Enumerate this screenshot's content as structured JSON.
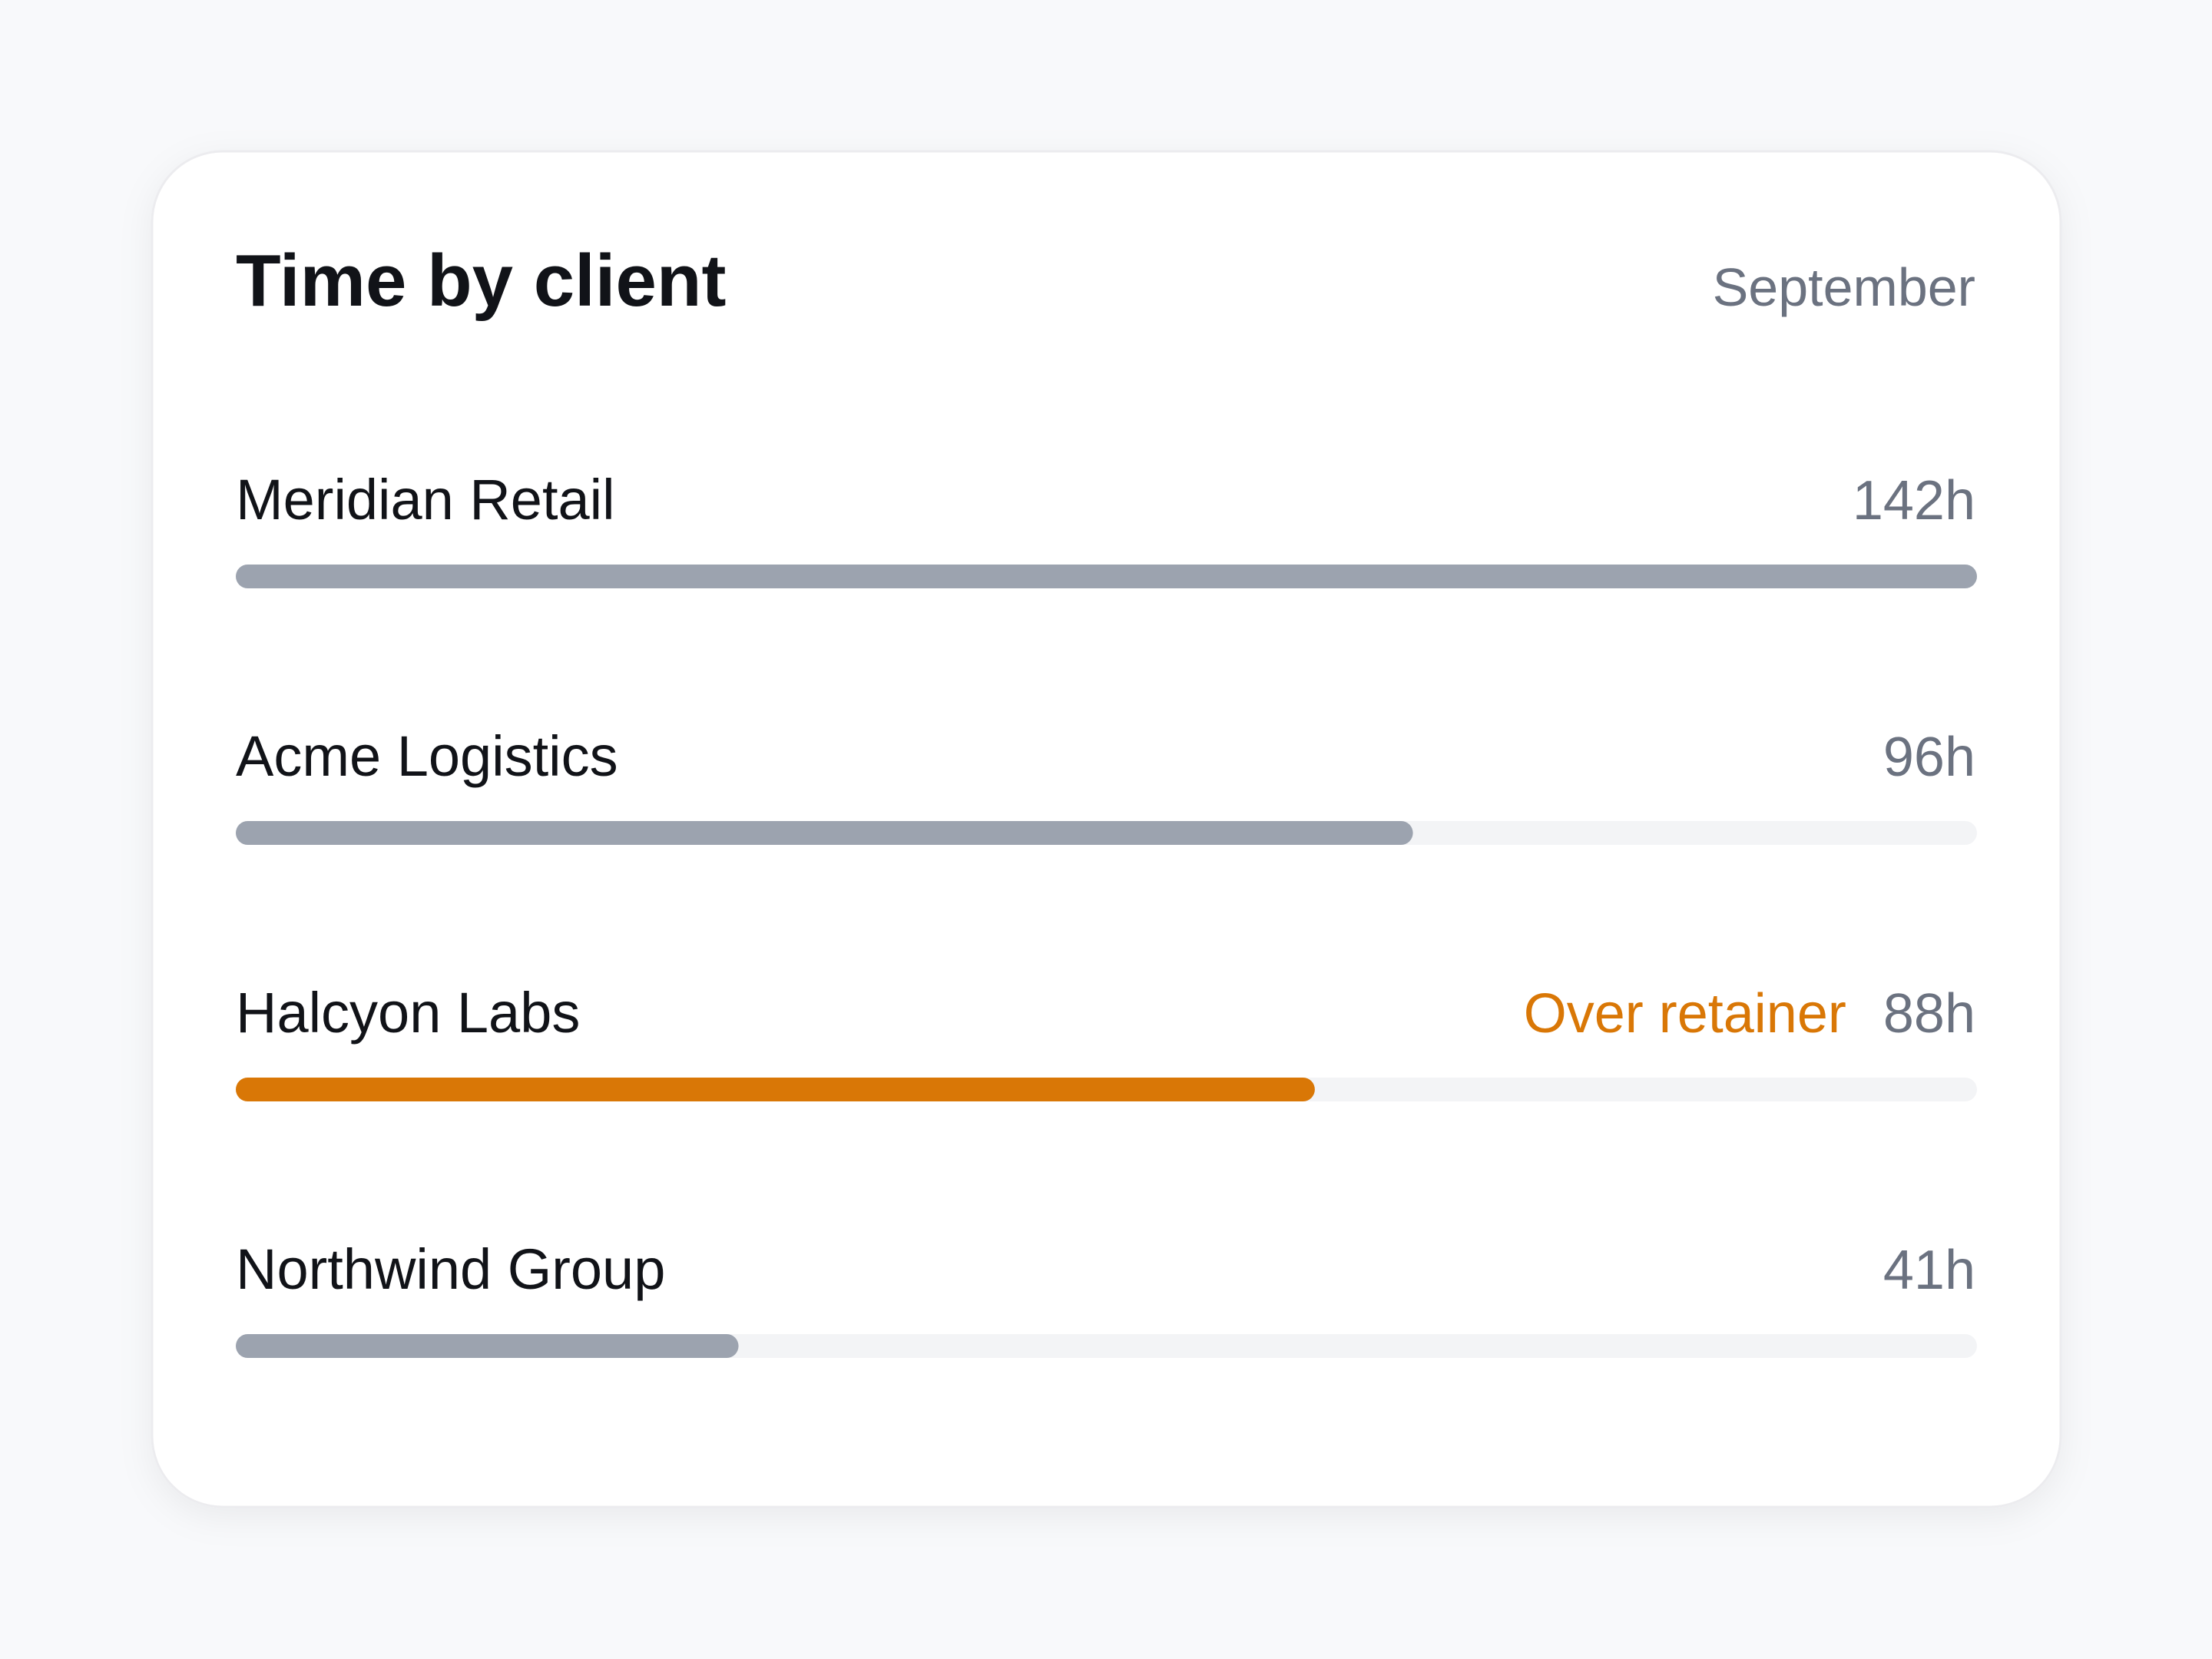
{
  "chart_data": {
    "type": "bar",
    "orientation": "horizontal",
    "title": "Time by client",
    "subtitle": "September",
    "categories": [
      "Meridian Retail",
      "Acme Logistics",
      "Halcyon Labs",
      "Northwind Group"
    ],
    "values": [
      142,
      96,
      88,
      41
    ],
    "value_labels": [
      "142h",
      "96h",
      "88h",
      "41h"
    ],
    "annotations": [
      null,
      null,
      "Over retainer",
      null
    ],
    "colors": [
      "#9ca3af",
      "#9ca3af",
      "#d97706",
      "#9ca3af"
    ],
    "annotation_color": "#d97706",
    "track_color": "#f3f4f6"
  }
}
